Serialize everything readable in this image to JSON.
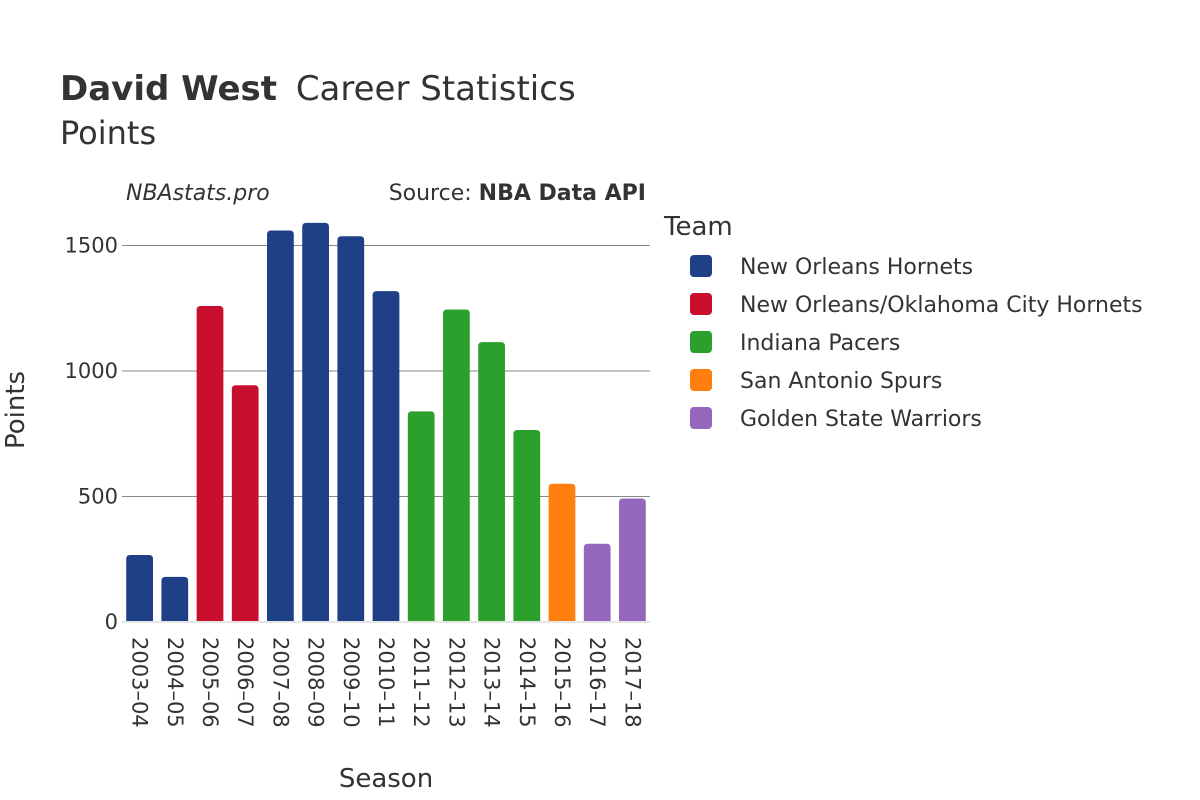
{
  "chart_data": {
    "type": "bar",
    "title_bold": "David West",
    "title_rest": "Career Statistics",
    "subtitle": "Points",
    "watermark": "NBAstats.pro",
    "source_prefix": "Source: ",
    "source_name": "NBA Data API",
    "xlabel": "Season",
    "ylabel": "Points",
    "ylim": [
      0,
      1750
    ],
    "yticks": [
      0,
      500,
      1000,
      1500
    ],
    "grid": true,
    "legend_title": "Team",
    "legend_position": "right",
    "teams": [
      {
        "name": "New Orleans Hornets",
        "color": "#1f3f87"
      },
      {
        "name": "New Orleans/Oklahoma City Hornets",
        "color": "#c8102e"
      },
      {
        "name": "Indiana Pacers",
        "color": "#2ca02c"
      },
      {
        "name": "San Antonio Spurs",
        "color": "#ff7f0e"
      },
      {
        "name": "Golden State Warriors",
        "color": "#9467bd"
      }
    ],
    "categories": [
      "2003–04",
      "2004–05",
      "2005–06",
      "2006–07",
      "2007–08",
      "2008–09",
      "2009–10",
      "2010–11",
      "2011–12",
      "2012–13",
      "2013–14",
      "2014–15",
      "2015–16",
      "2016–17",
      "2017–18"
    ],
    "values": [
      267,
      180,
      1259,
      943,
      1560,
      1590,
      1537,
      1318,
      839,
      1245,
      1115,
      765,
      551,
      312,
      492
    ],
    "bar_team": [
      0,
      0,
      1,
      1,
      0,
      0,
      0,
      0,
      2,
      2,
      2,
      2,
      3,
      4,
      4
    ]
  }
}
